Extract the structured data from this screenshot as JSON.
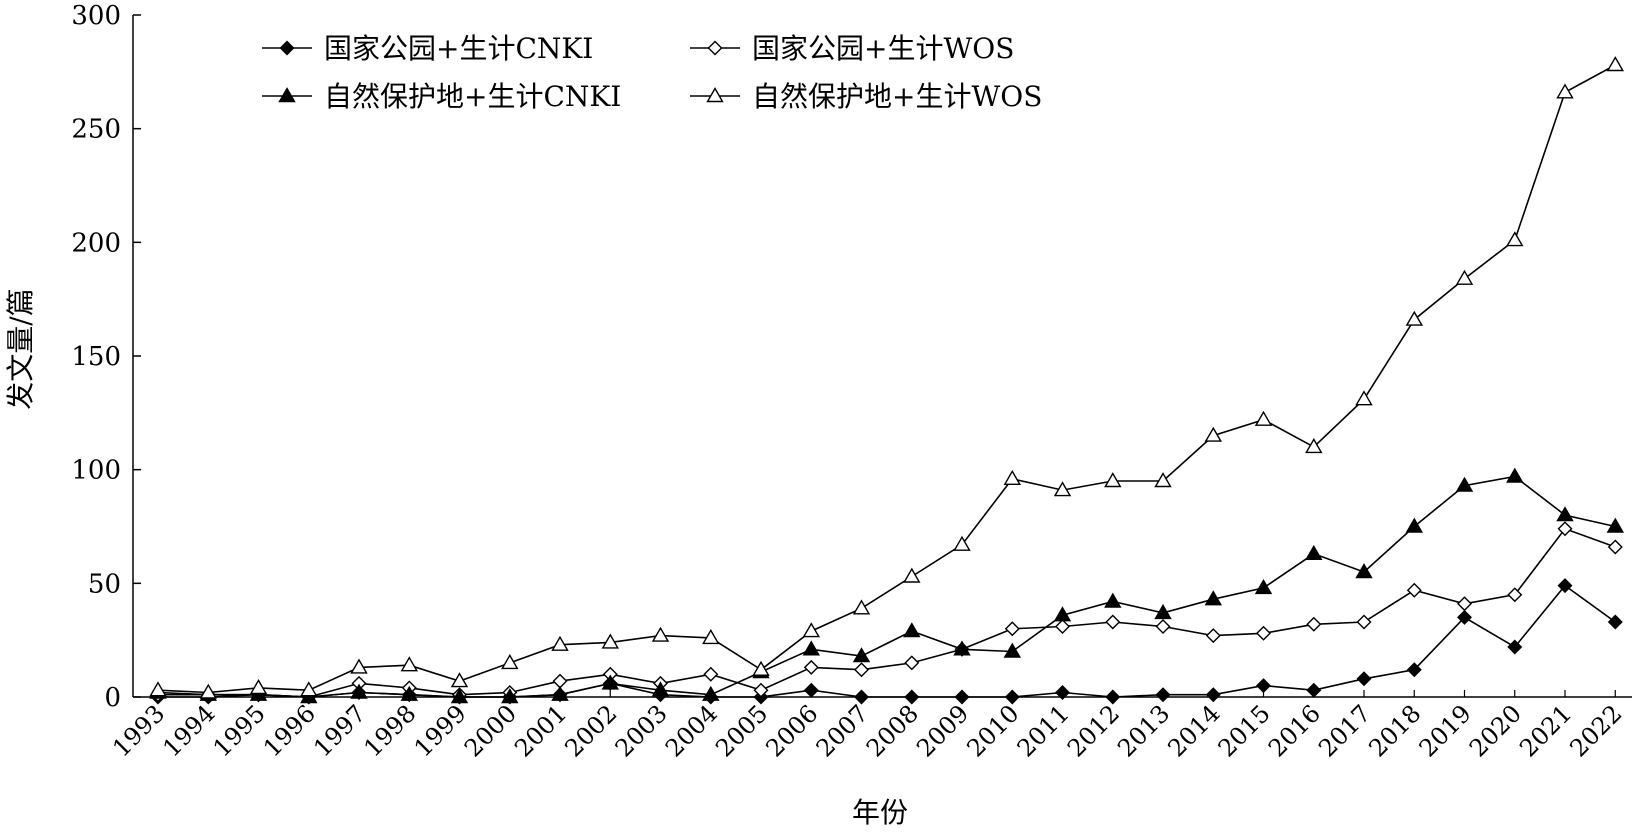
{
  "chart_data": {
    "type": "line",
    "xlabel": "年份",
    "ylabel": "发文量/篇",
    "ylim": [
      0,
      300
    ],
    "yticks": [
      0,
      50,
      100,
      150,
      200,
      250,
      300
    ],
    "grid": false,
    "legend_position": "top-left",
    "categories": [
      "1993",
      "1994",
      "1995",
      "1996",
      "1997",
      "1998",
      "1999",
      "2000",
      "2001",
      "2002",
      "2003",
      "2004",
      "2005",
      "2006",
      "2007",
      "2008",
      "2009",
      "2010",
      "2011",
      "2012",
      "2013",
      "2014",
      "2015",
      "2016",
      "2017",
      "2018",
      "2019",
      "2020",
      "2021",
      "2022"
    ],
    "series": [
      {
        "name": "国家公园+生计CNKI",
        "marker": "filled-diamond",
        "values": [
          0,
          0,
          1,
          0,
          2,
          1,
          0,
          0,
          1,
          6,
          1,
          0,
          0,
          3,
          0,
          0,
          0,
          0,
          2,
          0,
          1,
          1,
          5,
          3,
          8,
          12,
          35,
          22,
          49,
          33
        ]
      },
      {
        "name": "国家公园+生计WOS",
        "marker": "open-diamond",
        "values": [
          1,
          1,
          1,
          0,
          6,
          4,
          1,
          2,
          7,
          10,
          6,
          10,
          3,
          13,
          12,
          15,
          21,
          30,
          31,
          33,
          31,
          27,
          28,
          32,
          33,
          47,
          41,
          45,
          74,
          66
        ]
      },
      {
        "name": "自然保护地+生计CNKI",
        "marker": "filled-triangle",
        "values": [
          2,
          1,
          1,
          0,
          2,
          1,
          0,
          0,
          1,
          6,
          3,
          1,
          11,
          21,
          18,
          29,
          21,
          20,
          36,
          42,
          37,
          43,
          48,
          63,
          55,
          75,
          93,
          97,
          80,
          75
        ]
      },
      {
        "name": "自然保护地+生计WOS",
        "marker": "open-triangle",
        "values": [
          3,
          2,
          4,
          3,
          13,
          14,
          7,
          15,
          23,
          24,
          27,
          26,
          12,
          29,
          39,
          53,
          67,
          96,
          91,
          95,
          95,
          115,
          122,
          110,
          131,
          166,
          184,
          201,
          266,
          278
        ]
      }
    ],
    "legend_order": [
      0,
      1,
      2,
      3
    ]
  }
}
